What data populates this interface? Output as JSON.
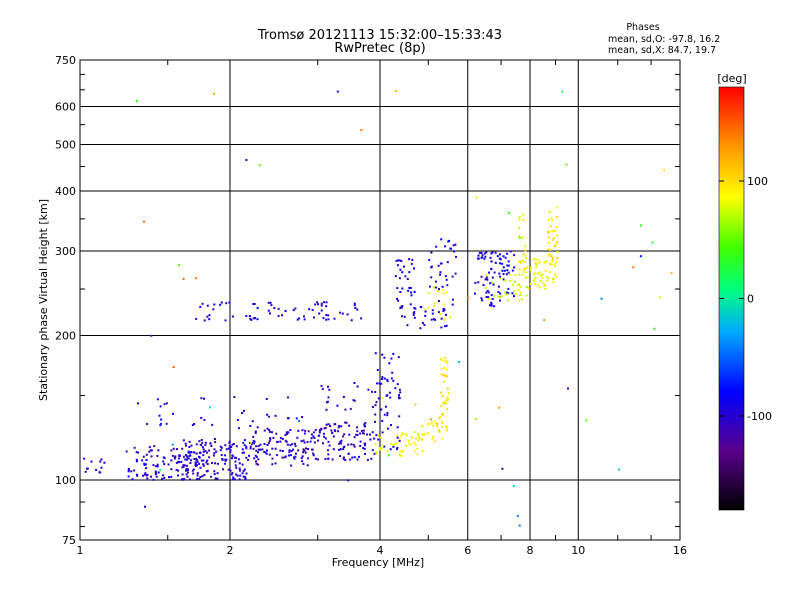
{
  "chart_data": {
    "type": "scatter",
    "title": "Tromsø 20121113 15:32:00–15:33:43",
    "subtitle": "RwPretec (8p)",
    "xlabel": "Frequency [MHz]",
    "ylabel": "Stationary phase Virtual Height [km]",
    "x_scale": "log",
    "y_scale": "log",
    "xlim": [
      1,
      16
    ],
    "ylim": [
      75,
      750
    ],
    "x_ticks": [
      {
        "value": 1,
        "label": "1"
      },
      {
        "value": 2,
        "label": "2"
      },
      {
        "value": 4,
        "label": "4"
      },
      {
        "value": 6,
        "label": "6"
      },
      {
        "value": 8,
        "label": "8"
      },
      {
        "value": 10,
        "label": "10"
      },
      {
        "value": 16,
        "label": "16"
      }
    ],
    "y_ticks": [
      {
        "value": 75,
        "label": "75"
      },
      {
        "value": 100,
        "label": "100"
      },
      {
        "value": 200,
        "label": "200"
      },
      {
        "value": 300,
        "label": "300"
      },
      {
        "value": 400,
        "label": "400"
      },
      {
        "value": 500,
        "label": "500"
      },
      {
        "value": 600,
        "label": "600"
      },
      {
        "value": 750,
        "label": "750"
      }
    ],
    "grid": true,
    "legend": {
      "title": "Phases",
      "line1": "mean, sd,O: -97.8, 16.2",
      "line2": "mean, sd,X:  84.7, 19.7"
    },
    "colorbar": {
      "label": "[deg]",
      "range": [
        -180,
        180
      ],
      "ticks": [
        {
          "value": 100,
          "label": "100"
        },
        {
          "value": 0,
          "label": "0"
        },
        {
          "value": -100,
          "label": "-100"
        }
      ]
    },
    "trace_groups": [
      {
        "f": [
          1.0,
          1.12
        ],
        "h": [
          102,
          112
        ],
        "phase": [
          -105,
          -80
        ],
        "n": 12
      },
      {
        "f": [
          1.25,
          1.75
        ],
        "h": [
          100,
          118
        ],
        "phase": [
          -115,
          -85
        ],
        "n": 110
      },
      {
        "f": [
          1.6,
          2.2
        ],
        "h": [
          100,
          122
        ],
        "phase": [
          -115,
          -85
        ],
        "n": 150
      },
      {
        "f": [
          2.2,
          3.0
        ],
        "h": [
          107,
          128
        ],
        "phase": [
          -118,
          -85
        ],
        "n": 120
      },
      {
        "f": [
          3.0,
          3.9
        ],
        "h": [
          110,
          132
        ],
        "phase": [
          -120,
          -85
        ],
        "n": 100
      },
      {
        "f": [
          1.3,
          2.9
        ],
        "h": [
          128,
          150
        ],
        "phase": [
          -110,
          -80
        ],
        "n": 35
      },
      {
        "f": [
          3.0,
          4.4
        ],
        "h": [
          140,
          160
        ],
        "phase": [
          -110,
          -80
        ],
        "n": 30
      },
      {
        "f": [
          3.9,
          4.4
        ],
        "h": [
          115,
          185
        ],
        "phase": [
          -105,
          -75
        ],
        "n": 45
      },
      {
        "f": [
          3.9,
          4.9
        ],
        "h": [
          112,
          126
        ],
        "phase": [
          75,
          95
        ],
        "n": 45
      },
      {
        "f": [
          4.8,
          5.4
        ],
        "h": [
          120,
          138
        ],
        "phase": [
          85,
          110
        ],
        "n": 25
      },
      {
        "f": [
          5.3,
          5.5
        ],
        "h": [
          125,
          180
        ],
        "phase": [
          80,
          110
        ],
        "n": 35
      },
      {
        "f": [
          1.7,
          3.7
        ],
        "h": [
          215,
          235
        ],
        "phase": [
          -110,
          -80
        ],
        "n": 70
      },
      {
        "f": [
          4.3,
          4.7
        ],
        "h": [
          210,
          290
        ],
        "phase": [
          -110,
          -80
        ],
        "n": 40
      },
      {
        "f": [
          4.6,
          5.5
        ],
        "h": [
          205,
          230
        ],
        "phase": [
          -105,
          -80
        ],
        "n": 25
      },
      {
        "f": [
          5.0,
          5.7
        ],
        "h": [
          220,
          320
        ],
        "phase": [
          -105,
          -75
        ],
        "n": 35
      },
      {
        "f": [
          4.9,
          5.6
        ],
        "h": [
          215,
          255
        ],
        "phase": [
          70,
          95
        ],
        "n": 15
      },
      {
        "f": [
          6.2,
          7.0
        ],
        "h": [
          230,
          300
        ],
        "phase": [
          -105,
          -80
        ],
        "n": 60
      },
      {
        "f": [
          7.0,
          7.5
        ],
        "h": [
          240,
          300
        ],
        "phase": [
          -100,
          -70
        ],
        "n": 25
      },
      {
        "f": [
          6.5,
          8.0
        ],
        "h": [
          235,
          270
        ],
        "phase": [
          60,
          95
        ],
        "n": 35
      },
      {
        "f": [
          7.6,
          7.9
        ],
        "h": [
          260,
          360
        ],
        "phase": [
          75,
          105
        ],
        "n": 25
      },
      {
        "f": [
          8.0,
          9.0
        ],
        "h": [
          250,
          290
        ],
        "phase": [
          70,
          100
        ],
        "n": 40
      },
      {
        "f": [
          8.7,
          9.1
        ],
        "h": [
          260,
          370
        ],
        "phase": [
          80,
          110
        ],
        "n": 40
      },
      {
        "f": [
          1.0,
          16.0
        ],
        "h": [
          80,
          650
        ],
        "phase": [
          -120,
          150
        ],
        "n": 55
      }
    ]
  }
}
